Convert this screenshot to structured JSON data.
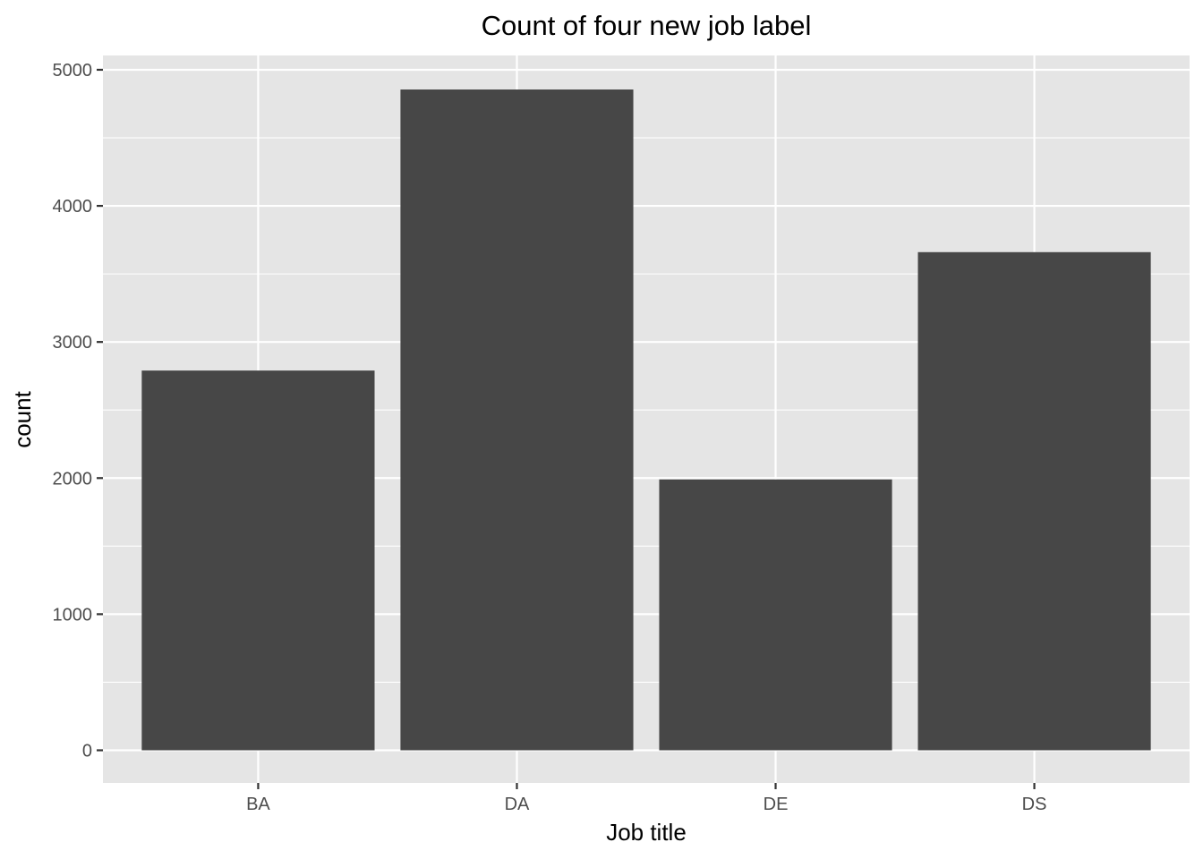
{
  "chart_data": {
    "type": "bar",
    "title": "Count of four new job label",
    "xlabel": "Job title",
    "ylabel": "count",
    "categories": [
      "BA",
      "DA",
      "DE",
      "DS"
    ],
    "values": [
      2790,
      4855,
      1990,
      3660
    ],
    "ylim": [
      -240,
      5105
    ],
    "yticks": [
      0,
      1000,
      2000,
      3000,
      4000,
      5000
    ],
    "ytick_labels": [
      "0",
      "1000",
      "2000",
      "3000",
      "4000",
      "5000"
    ],
    "grid": true,
    "legend": "none",
    "colors": {
      "bar": "#474747",
      "panel": "#e5e5e5",
      "grid": "#ffffff",
      "tick_text": "#4d4d4d",
      "tick_mark": "#333333"
    }
  }
}
